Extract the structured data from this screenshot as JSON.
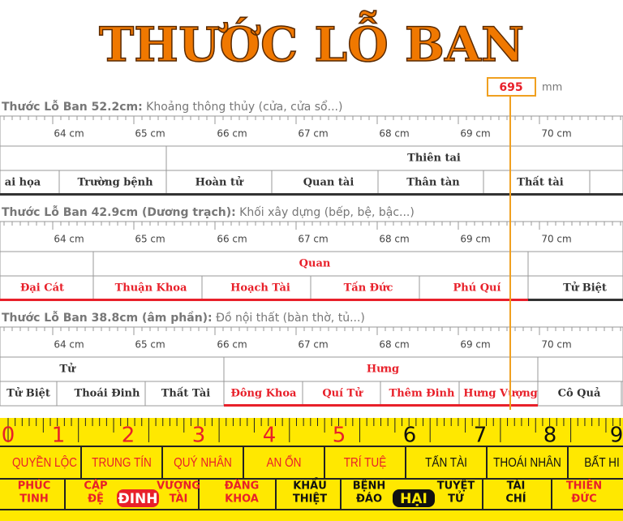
{
  "title": "THƯỚC LỖ BAN",
  "indicator": {
    "value": 695,
    "unit": "mm"
  },
  "rulers": [
    {
      "name": "Thước Lỗ Ban 52.2cm:",
      "description": "Khoảng thông thủy (cửa, cửa sổ...)",
      "ticks": [
        "64 cm",
        "65 cm",
        "66 cm",
        "67 cm",
        "68 cm",
        "69 cm",
        "70 cm"
      ],
      "top_row": [
        "Thiên tai"
      ],
      "bottom_row": [
        "ai họa",
        "Trường bệnh",
        "Hoàn tử",
        "Quan tài",
        "Thân tàn",
        "Thất tài"
      ]
    },
    {
      "name": "Thước Lỗ Ban 42.9cm (Dương trạch):",
      "description": "Khối xây dựng (bếp, bệ, bậc...)",
      "ticks": [
        "64 cm",
        "65 cm",
        "66 cm",
        "67 cm",
        "68 cm",
        "69 cm",
        "70 cm"
      ],
      "top_row": [
        "Quan"
      ],
      "bottom_row": [
        "Đại Cát",
        "Thuận Khoa",
        "Hoạch Tài",
        "Tấn Đức",
        "Phú Quí",
        "Tử Biệt"
      ]
    },
    {
      "name": "Thước Lỗ Ban 38.8cm (âm phần):",
      "description": "Đồ nội thất (bàn thờ, tủ...)",
      "ticks": [
        "64 cm",
        "65 cm",
        "66 cm",
        "67 cm",
        "68 cm",
        "69 cm",
        "70 cm"
      ],
      "top_row": [
        "Tử",
        "Hưng"
      ],
      "bottom_row": [
        "Tử Biệt",
        "Thoái Đinh",
        "Thất Tài",
        "Đông Khoa",
        "Quí Tử",
        "Thêm Đinh",
        "Hưng Vượng",
        "Cô Quả"
      ]
    }
  ],
  "tape": {
    "numbers": [
      0,
      1,
      2,
      3,
      4,
      5,
      6,
      7,
      8,
      9
    ],
    "top_row": [
      "QUYỀN LỘC",
      "TRUNG TÍN",
      "QUÝ NHÂN",
      "AN ỔN",
      "TRÍ TUỆ",
      "TẤN TÀI",
      "THOÁI NHÂN",
      "BẤT HI"
    ],
    "bottom_row": [
      [
        "PHÚC",
        "TINH"
      ],
      [
        "CẬP",
        "ĐỆ"
      ],
      [
        "ĐINH"
      ],
      [
        "VƯỢNG",
        "TÀI"
      ],
      [
        "ĐĂNG",
        "KHOA"
      ],
      [
        "KHẨU",
        "THIỆT"
      ],
      [
        "BỆNH",
        "ĐÁO"
      ],
      [
        "HẠI"
      ],
      [
        "TUYỆT",
        "TỬ"
      ],
      [
        "TÀI",
        "CHÍ"
      ],
      [
        "THIÊN",
        "ĐỨC"
      ]
    ]
  }
}
